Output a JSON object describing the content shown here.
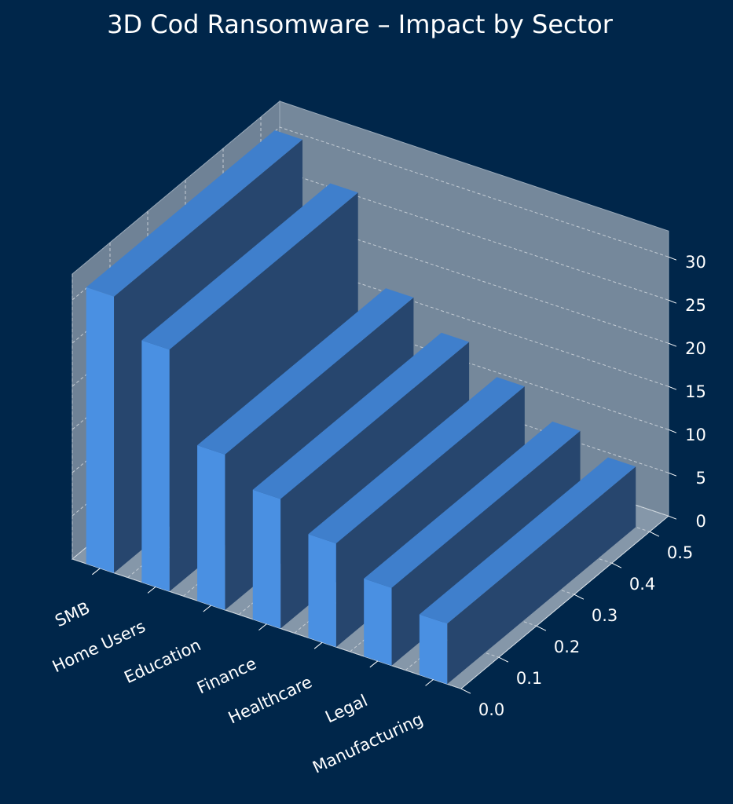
{
  "chart_data": {
    "type": "bar3d",
    "title": "3D Cod Ransomware – Impact by Sector",
    "categories": [
      "SMB",
      "Home Users",
      "Education",
      "Finance",
      "Healthcare",
      "Legal",
      "Manufacturing"
    ],
    "values": [
      32,
      28,
      18,
      15,
      12,
      9,
      7
    ],
    "color": "#4a90e2",
    "zlim": [
      0,
      33
    ],
    "zticks": [
      0,
      5,
      10,
      15,
      20,
      25,
      30
    ],
    "ylim": [
      0,
      0.55
    ],
    "yticks": [
      {
        "value": 0,
        "label": "0.0"
      },
      0.1,
      0.2,
      0.3,
      0.4,
      0.5
    ],
    "grid": true
  }
}
